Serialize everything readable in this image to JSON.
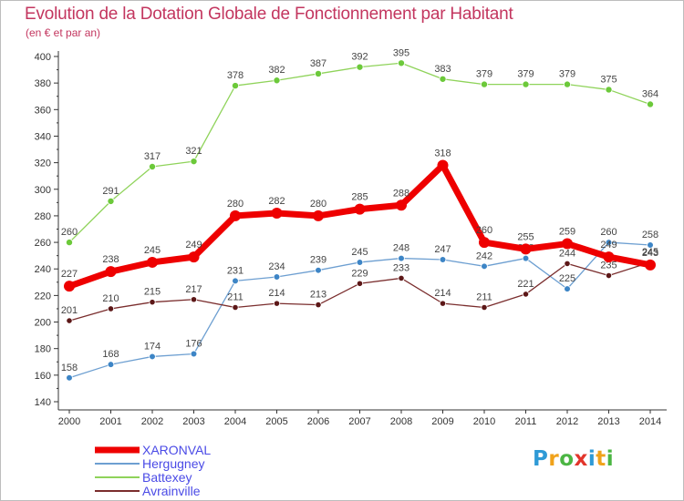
{
  "title": "Evolution de la Dotation Globale de Fonctionnement par Habitant",
  "subtitle": "(en € et par an)",
  "logo": {
    "text": "Proxiti",
    "letters": [
      "P",
      "r",
      "o",
      "x",
      "i",
      "t",
      "i"
    ],
    "colors": [
      "#2f9ad6",
      "#f0a21a",
      "#4bb543",
      "#e2352b",
      "#2f9ad6",
      "#f0a21a",
      "#4bb543"
    ]
  },
  "chart_data": {
    "type": "line",
    "x": [
      "2000",
      "2001",
      "2002",
      "2003",
      "2004",
      "2005",
      "2006",
      "2007",
      "2008",
      "2009",
      "2010",
      "2011",
      "2012",
      "2013",
      "2014"
    ],
    "ylim": [
      140,
      400
    ],
    "yticks": [
      140,
      160,
      180,
      200,
      220,
      240,
      260,
      280,
      300,
      320,
      340,
      360,
      380,
      400
    ],
    "grid": false,
    "legend_position": "bottom-left",
    "series": [
      {
        "name": "Battexey",
        "color": "#8fd35a",
        "point_color": "#6cc93a",
        "line_width": 1.3,
        "marker_radius": 3.6,
        "values": [
          260,
          291,
          317,
          321,
          378,
          382,
          387,
          392,
          395,
          383,
          379,
          379,
          379,
          375,
          364
        ],
        "labels": [
          "260",
          "291",
          "317",
          "321",
          "378",
          "382",
          "387",
          "392",
          "395",
          "383",
          "379",
          "379",
          "379",
          "375",
          "364"
        ]
      },
      {
        "name": "Hergugney",
        "color": "#6d9fd1",
        "point_color": "#3d85c6",
        "line_width": 1.3,
        "marker_radius": 3.4,
        "values": [
          158,
          168,
          174,
          176,
          231,
          234,
          239,
          245,
          248,
          247,
          242,
          248,
          225,
          260,
          258
        ],
        "labels": [
          "158",
          "168",
          "174",
          "176",
          "231",
          "234",
          "239",
          "245",
          "248",
          "247",
          "242",
          "248",
          "225",
          "260",
          "258"
        ]
      },
      {
        "name": "Avrainville",
        "color": "#7a2d2d",
        "point_color": "#5c1717",
        "line_width": 1.3,
        "marker_radius": 3.2,
        "values": [
          201,
          210,
          215,
          217,
          211,
          214,
          213,
          229,
          233,
          214,
          211,
          221,
          244,
          235,
          245
        ],
        "labels": [
          "201",
          "210",
          "215",
          "217",
          "211",
          "214",
          "213",
          "229",
          "233",
          "214",
          "211",
          "221",
          "244",
          "235",
          "245"
        ]
      },
      {
        "name": "XARONVAL",
        "color": "#ee0000",
        "point_color": "#ee0000",
        "line_width": 7,
        "marker_radius": 6,
        "values": [
          227,
          238,
          245,
          249,
          280,
          282,
          280,
          285,
          288,
          318,
          260,
          255,
          259,
          249,
          243
        ],
        "labels": [
          "227",
          "238",
          "245",
          "249",
          "280",
          "282",
          "280",
          "285",
          "288",
          "318",
          "260",
          "255",
          "259",
          "249",
          "243"
        ]
      }
    ],
    "legend": [
      {
        "name": "XARONVAL",
        "color": "#ee0000",
        "line_width": 7
      },
      {
        "name": "Hergugney",
        "color": "#6d9fd1",
        "line_width": 2
      },
      {
        "name": "Battexey",
        "color": "#8fd35a",
        "line_width": 2
      },
      {
        "name": "Avrainville",
        "color": "#7a2d2d",
        "line_width": 2
      }
    ]
  }
}
